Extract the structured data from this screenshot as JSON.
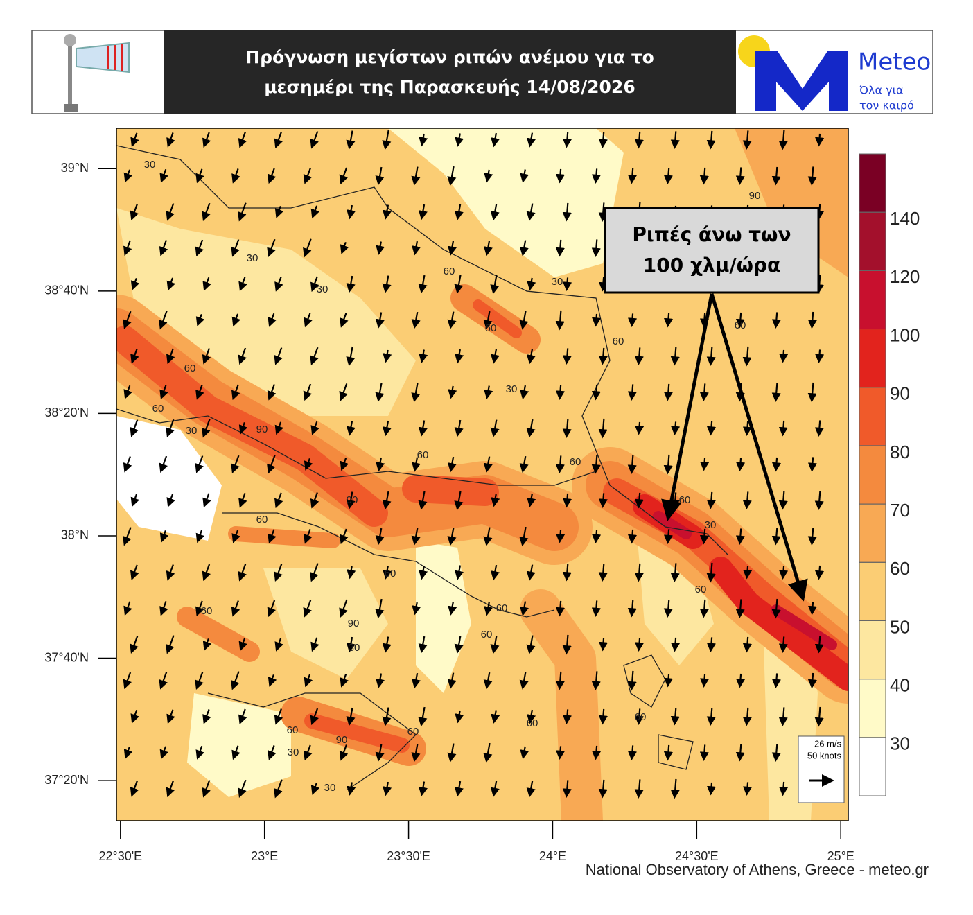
{
  "header": {
    "title_lines": [
      "Πρόγνωση μεγίστων ριπών ανέμου για το",
      "μεσημέρι της Παρασκευής 14/08/2026"
    ],
    "logo_name": "Meteo",
    "logo_tagline": [
      "Όλα για",
      "τον καιρό"
    ]
  },
  "map": {
    "xlim": [
      22.486,
      25.026
    ],
    "ylim": [
      37.224,
      39.11
    ],
    "xticks": [
      {
        "value": 22.5,
        "label": "22°30'E"
      },
      {
        "value": 23,
        "label": "23°E"
      },
      {
        "value": 23.5,
        "label": "23°30'E"
      },
      {
        "value": 24,
        "label": "24°E"
      },
      {
        "value": 24.5,
        "label": "24°30'E"
      },
      {
        "value": 25,
        "label": "25°E"
      }
    ],
    "yticks": [
      {
        "value": 39,
        "label": "39°N"
      },
      {
        "value": 38.6667,
        "label": "38°40'N"
      },
      {
        "value": 38.3333,
        "label": "38°20'N"
      },
      {
        "value": 38,
        "label": "38°N"
      },
      {
        "value": 37.6667,
        "label": "37°40'N"
      },
      {
        "value": 37.3333,
        "label": "37°20'N"
      }
    ],
    "contour_labels": [
      "30",
      "30",
      "30",
      "60",
      "60",
      "60",
      "60",
      "90",
      "30",
      "60",
      "90",
      "60",
      "30",
      "60",
      "90",
      "60",
      "60",
      "60",
      "60",
      "90",
      "60",
      "60",
      "30",
      "30",
      "60",
      "60",
      "90",
      "60",
      "30",
      "30",
      "60",
      "60",
      "60",
      "30"
    ],
    "vector_key": [
      "26 m/s",
      "50 knots"
    ],
    "callout": [
      "Ριπές άνω των",
      "100 χλμ/ώρα"
    ],
    "colorbar": {
      "levels": [
        30,
        40,
        50,
        60,
        70,
        80,
        90,
        100,
        120,
        140
      ],
      "colors": [
        "#ffffff",
        "#fffac8",
        "#fde7a0",
        "#fbcd74",
        "#f8a954",
        "#f48a3e",
        "#f05a2a",
        "#e2231d",
        "#c8102e",
        "#a3102c",
        "#7a0024"
      ]
    },
    "credit": "National Observatory of Athens, Greece - meteo.gr"
  }
}
